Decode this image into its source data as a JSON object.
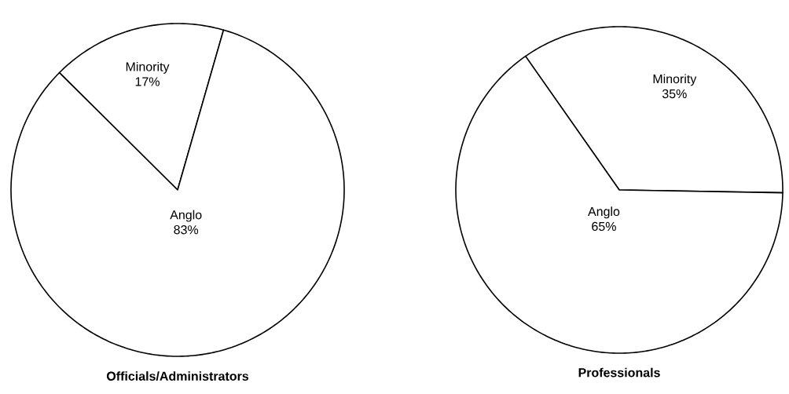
{
  "chart_data": [
    {
      "type": "pie",
      "title": "Officials/Administrators",
      "categories": [
        "Minority",
        "Anglo"
      ],
      "values": [
        17,
        83
      ],
      "value_labels": [
        "17%",
        "83%"
      ],
      "colors": [
        "#ffffff",
        "#ffffff"
      ]
    },
    {
      "type": "pie",
      "title": "Professionals",
      "categories": [
        "Minority",
        "Anglo"
      ],
      "values": [
        35,
        65
      ],
      "value_labels": [
        "35%",
        "65%"
      ],
      "colors": [
        "#ffffff",
        "#ffffff"
      ]
    }
  ]
}
